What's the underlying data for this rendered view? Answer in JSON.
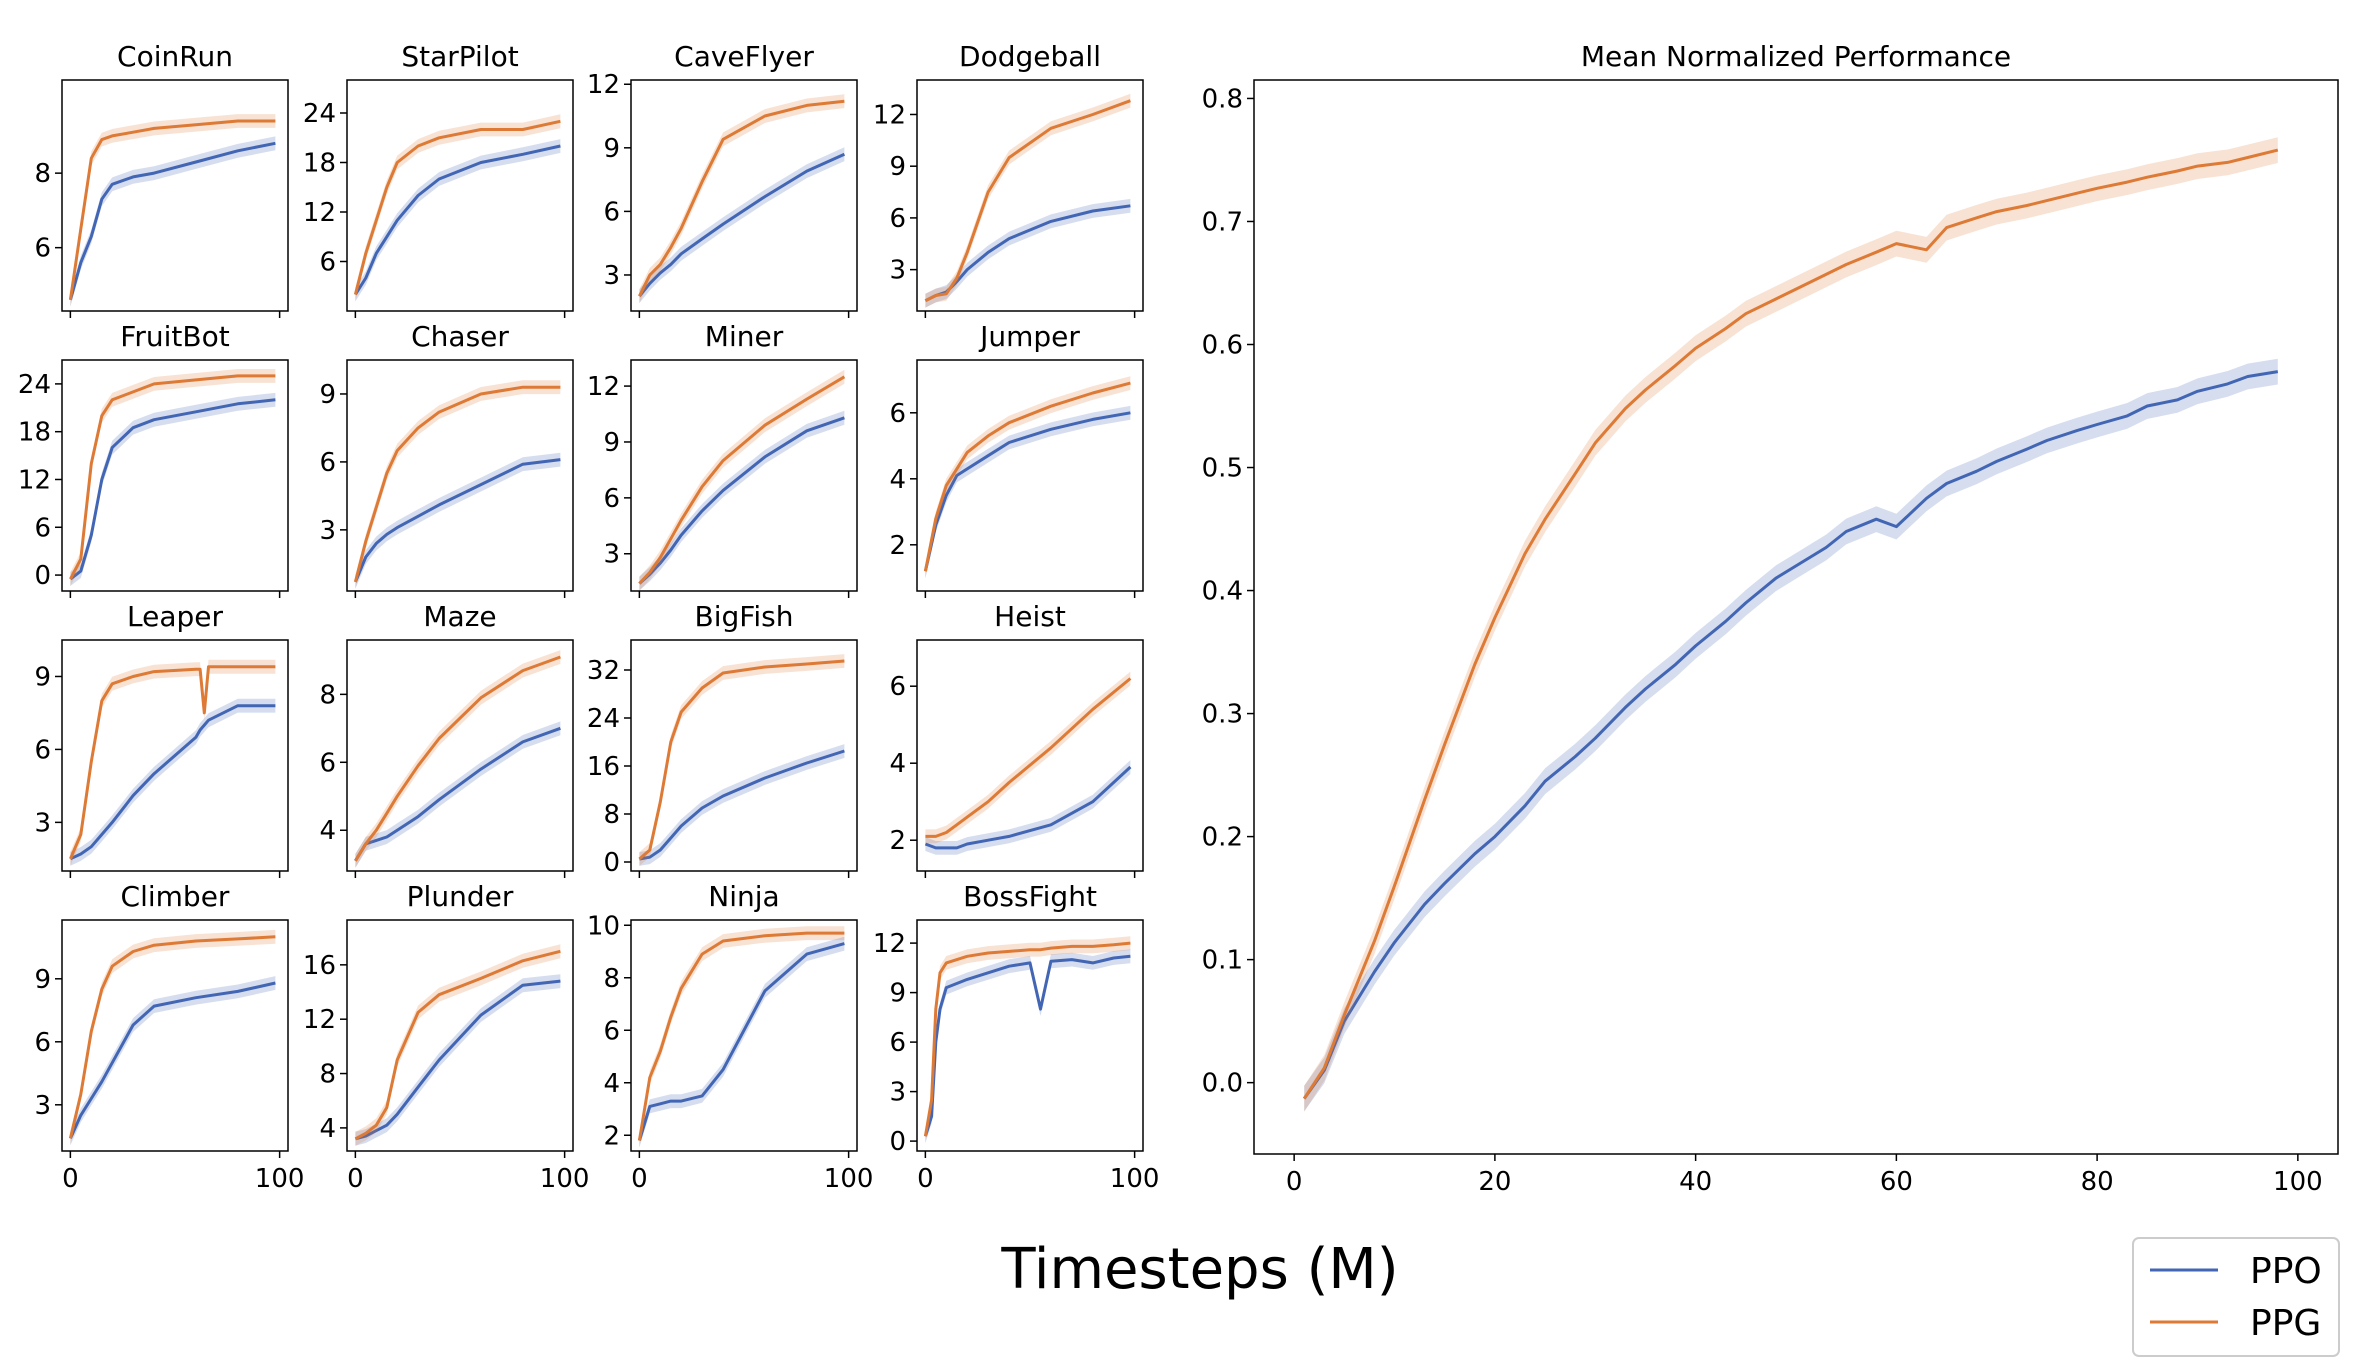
{
  "xlabel": "Timesteps (M)",
  "legend": {
    "placement": "bottom-right",
    "entries": [
      {
        "name": "PPO",
        "color": "#4266b4"
      },
      {
        "name": "PPG",
        "color": "#dd7a36"
      }
    ]
  },
  "chart_data": [
    {
      "type": "line",
      "title": "CoinRun",
      "x": [
        0,
        5,
        10,
        15,
        20,
        30,
        40,
        60,
        80,
        98
      ],
      "yticks": [
        6,
        8
      ],
      "ylim": [
        4.3,
        10.5
      ],
      "xlim": [
        -4,
        104
      ],
      "xticks": [
        0,
        100
      ],
      "series": [
        {
          "name": "PPO",
          "y": [
            4.6,
            5.6,
            6.3,
            7.3,
            7.7,
            7.9,
            8.0,
            8.3,
            8.6,
            8.8
          ]
        },
        {
          "name": "PPG",
          "y": [
            4.6,
            6.5,
            8.4,
            8.9,
            9.0,
            9.1,
            9.2,
            9.3,
            9.4,
            9.4
          ]
        }
      ]
    },
    {
      "type": "line",
      "title": "StarPilot",
      "x": [
        0,
        5,
        10,
        15,
        20,
        30,
        40,
        60,
        80,
        98
      ],
      "yticks": [
        6,
        12,
        18,
        24
      ],
      "ylim": [
        0,
        28
      ],
      "xlim": [
        -4,
        104
      ],
      "xticks": [
        0,
        100
      ],
      "series": [
        {
          "name": "PPO",
          "y": [
            2,
            4,
            7,
            9,
            11,
            14,
            16,
            18,
            19,
            20
          ]
        },
        {
          "name": "PPG",
          "y": [
            2,
            7,
            11,
            15,
            18,
            20,
            21,
            22,
            22,
            23
          ]
        }
      ]
    },
    {
      "type": "line",
      "title": "CaveFlyer",
      "x": [
        0,
        5,
        10,
        15,
        20,
        30,
        40,
        60,
        80,
        98
      ],
      "yticks": [
        3,
        6,
        9,
        12
      ],
      "ylim": [
        1.3,
        12.2
      ],
      "xlim": [
        -4,
        104
      ],
      "xticks": [
        0,
        100
      ],
      "series": [
        {
          "name": "PPO",
          "y": [
            2,
            2.6,
            3.1,
            3.5,
            4,
            4.7,
            5.4,
            6.7,
            7.9,
            8.7
          ]
        },
        {
          "name": "PPG",
          "y": [
            2,
            3,
            3.5,
            4.3,
            5.2,
            7.4,
            9.4,
            10.5,
            11.0,
            11.2
          ]
        }
      ]
    },
    {
      "type": "line",
      "title": "Dodgeball",
      "x": [
        0,
        5,
        10,
        15,
        20,
        30,
        40,
        60,
        80,
        98
      ],
      "yticks": [
        3,
        6,
        9,
        12
      ],
      "ylim": [
        0.6,
        14
      ],
      "xlim": [
        -4,
        104
      ],
      "xticks": [
        0,
        100
      ],
      "series": [
        {
          "name": "PPO",
          "y": [
            1.2,
            1.5,
            1.7,
            2.3,
            3.0,
            4.0,
            4.8,
            5.8,
            6.4,
            6.7
          ]
        },
        {
          "name": "PPG",
          "y": [
            1.2,
            1.5,
            1.6,
            2.5,
            4,
            7.5,
            9.5,
            11.2,
            12.0,
            12.8
          ]
        }
      ]
    },
    {
      "type": "line",
      "title": "FruitBot",
      "x": [
        0,
        5,
        10,
        15,
        20,
        30,
        40,
        60,
        80,
        98
      ],
      "yticks": [
        0,
        6,
        12,
        18,
        24
      ],
      "ylim": [
        -2,
        27
      ],
      "xlim": [
        -4,
        104
      ],
      "xticks": [
        0,
        100
      ],
      "series": [
        {
          "name": "PPO",
          "y": [
            -0.5,
            0.5,
            5,
            12,
            16,
            18.5,
            19.5,
            20.5,
            21.5,
            22
          ]
        },
        {
          "name": "PPG",
          "y": [
            -0.5,
            2,
            14,
            20,
            22,
            23,
            24,
            24.5,
            25,
            25
          ]
        }
      ]
    },
    {
      "type": "line",
      "title": "Chaser",
      "x": [
        0,
        5,
        10,
        15,
        20,
        30,
        40,
        60,
        80,
        98
      ],
      "yticks": [
        3,
        6,
        9
      ],
      "ylim": [
        0.3,
        10.5
      ],
      "xlim": [
        -4,
        104
      ],
      "xticks": [
        0,
        100
      ],
      "series": [
        {
          "name": "PPO",
          "y": [
            0.7,
            1.8,
            2.4,
            2.8,
            3.1,
            3.6,
            4.1,
            5,
            5.9,
            6.1
          ]
        },
        {
          "name": "PPG",
          "y": [
            0.7,
            2.5,
            4,
            5.5,
            6.5,
            7.5,
            8.2,
            9,
            9.3,
            9.3
          ]
        }
      ]
    },
    {
      "type": "line",
      "title": "Miner",
      "x": [
        0,
        5,
        10,
        15,
        20,
        30,
        40,
        60,
        80,
        98
      ],
      "yticks": [
        3,
        6,
        9,
        12
      ],
      "ylim": [
        1,
        13.4
      ],
      "xlim": [
        -4,
        104
      ],
      "xticks": [
        0,
        100
      ],
      "series": [
        {
          "name": "PPO",
          "y": [
            1.4,
            1.9,
            2.5,
            3.2,
            4,
            5.3,
            6.4,
            8.2,
            9.6,
            10.3
          ]
        },
        {
          "name": "PPG",
          "y": [
            1.4,
            2,
            2.8,
            3.8,
            4.8,
            6.6,
            8,
            9.9,
            11.3,
            12.5
          ]
        }
      ]
    },
    {
      "type": "line",
      "title": "Jumper",
      "x": [
        0,
        5,
        10,
        15,
        20,
        30,
        40,
        60,
        80,
        98
      ],
      "yticks": [
        2,
        4,
        6
      ],
      "ylim": [
        0.6,
        7.6
      ],
      "xlim": [
        -4,
        104
      ],
      "xticks": [
        0,
        100
      ],
      "series": [
        {
          "name": "PPO",
          "y": [
            1.2,
            2.6,
            3.5,
            4.1,
            4.3,
            4.7,
            5.1,
            5.5,
            5.8,
            6.0
          ]
        },
        {
          "name": "PPG",
          "y": [
            1.2,
            2.8,
            3.8,
            4.3,
            4.8,
            5.3,
            5.7,
            6.2,
            6.6,
            6.9
          ]
        }
      ]
    },
    {
      "type": "line",
      "title": "Leaper",
      "x": [
        0,
        5,
        10,
        15,
        20,
        30,
        40,
        60,
        62,
        64,
        66,
        80,
        98
      ],
      "yticks": [
        3,
        6,
        9
      ],
      "ylim": [
        1,
        10.5
      ],
      "xlim": [
        -4,
        104
      ],
      "xticks": [
        0,
        100
      ],
      "series": [
        {
          "name": "PPO",
          "y": [
            1.5,
            1.7,
            2.0,
            2.5,
            3.0,
            4.1,
            5.0,
            6.5,
            6.8,
            7.0,
            7.2,
            7.8,
            7.8
          ]
        },
        {
          "name": "PPG",
          "y": [
            1.5,
            2.5,
            5.5,
            8.0,
            8.7,
            9.0,
            9.2,
            9.3,
            9.3,
            7.5,
            9.4,
            9.4,
            9.4
          ]
        }
      ]
    },
    {
      "type": "line",
      "title": "Maze",
      "x": [
        0,
        5,
        10,
        15,
        20,
        30,
        40,
        60,
        80,
        98
      ],
      "yticks": [
        4,
        6,
        8
      ],
      "ylim": [
        2.8,
        9.6
      ],
      "xlim": [
        -4,
        104
      ],
      "xticks": [
        0,
        100
      ],
      "series": [
        {
          "name": "PPO",
          "y": [
            3.1,
            3.6,
            3.7,
            3.8,
            4.0,
            4.4,
            4.9,
            5.8,
            6.6,
            7.0
          ]
        },
        {
          "name": "PPG",
          "y": [
            3.1,
            3.6,
            4.0,
            4.5,
            5.0,
            5.9,
            6.7,
            7.9,
            8.7,
            9.1
          ]
        }
      ]
    },
    {
      "type": "line",
      "title": "BigFish",
      "x": [
        0,
        5,
        10,
        15,
        20,
        30,
        40,
        60,
        80,
        98
      ],
      "yticks": [
        0,
        8,
        16,
        24,
        32
      ],
      "ylim": [
        -1.5,
        37
      ],
      "xlim": [
        -4,
        104
      ],
      "xticks": [
        0,
        100
      ],
      "series": [
        {
          "name": "PPO",
          "y": [
            0.5,
            0.8,
            2,
            4,
            6,
            9,
            11,
            14,
            16.5,
            18.5
          ]
        },
        {
          "name": "PPG",
          "y": [
            0.5,
            2,
            10,
            20,
            25,
            29,
            31.5,
            32.5,
            33,
            33.5
          ]
        }
      ]
    },
    {
      "type": "line",
      "title": "Heist",
      "x": [
        0,
        5,
        10,
        15,
        20,
        30,
        40,
        60,
        80,
        98
      ],
      "yticks": [
        2,
        4,
        6
      ],
      "ylim": [
        1.2,
        7.2
      ],
      "xlim": [
        -4,
        104
      ],
      "xticks": [
        0,
        100
      ],
      "series": [
        {
          "name": "PPO",
          "y": [
            1.9,
            1.8,
            1.8,
            1.8,
            1.9,
            2.0,
            2.1,
            2.4,
            3.0,
            3.9
          ]
        },
        {
          "name": "PPG",
          "y": [
            2.1,
            2.1,
            2.2,
            2.4,
            2.6,
            3.0,
            3.5,
            4.4,
            5.4,
            6.2
          ]
        }
      ]
    },
    {
      "type": "line",
      "title": "Climber",
      "x": [
        0,
        5,
        10,
        15,
        20,
        30,
        40,
        60,
        80,
        98
      ],
      "yticks": [
        3,
        6,
        9
      ],
      "ylim": [
        0.8,
        11.8
      ],
      "xlim": [
        -4,
        104
      ],
      "xticks": [
        0,
        100
      ],
      "series": [
        {
          "name": "PPO",
          "y": [
            1.4,
            2.5,
            3.3,
            4.1,
            5.0,
            6.8,
            7.7,
            8.1,
            8.4,
            8.8
          ]
        },
        {
          "name": "PPG",
          "y": [
            1.4,
            3.5,
            6.5,
            8.5,
            9.6,
            10.3,
            10.6,
            10.8,
            10.9,
            11.0
          ]
        }
      ]
    },
    {
      "type": "line",
      "title": "Plunder",
      "x": [
        0,
        5,
        10,
        15,
        20,
        30,
        40,
        60,
        80,
        98
      ],
      "yticks": [
        4,
        8,
        12,
        16
      ],
      "ylim": [
        2.3,
        19.3
      ],
      "xlim": [
        -4,
        104
      ],
      "xticks": [
        0,
        100
      ],
      "series": [
        {
          "name": "PPO",
          "y": [
            3.2,
            3.4,
            3.8,
            4.2,
            5.0,
            7.0,
            9.0,
            12.3,
            14.5,
            14.8
          ]
        },
        {
          "name": "PPG",
          "y": [
            3.2,
            3.6,
            4.2,
            5.5,
            9.0,
            12.5,
            13.8,
            15.0,
            16.3,
            17.0
          ]
        }
      ]
    },
    {
      "type": "line",
      "title": "Ninja",
      "x": [
        0,
        5,
        10,
        15,
        20,
        30,
        40,
        60,
        80,
        98
      ],
      "yticks": [
        2,
        4,
        6,
        8,
        10
      ],
      "ylim": [
        1.4,
        10.2
      ],
      "xlim": [
        -4,
        104
      ],
      "xticks": [
        0,
        100
      ],
      "series": [
        {
          "name": "PPO",
          "y": [
            1.8,
            3.1,
            3.2,
            3.3,
            3.3,
            3.5,
            4.5,
            7.5,
            8.9,
            9.3
          ]
        },
        {
          "name": "PPG",
          "y": [
            1.8,
            4.2,
            5.2,
            6.5,
            7.6,
            8.9,
            9.4,
            9.6,
            9.7,
            9.7
          ]
        }
      ]
    },
    {
      "type": "line",
      "title": "BossFight",
      "x": [
        0,
        3,
        5,
        7,
        10,
        20,
        30,
        40,
        50,
        55,
        60,
        70,
        80,
        90,
        98
      ],
      "yticks": [
        0,
        3,
        6,
        9,
        12
      ],
      "ylim": [
        -0.6,
        13.4
      ],
      "xlim": [
        -4,
        104
      ],
      "xticks": [
        0,
        100
      ],
      "series": [
        {
          "name": "PPO",
          "y": [
            0.3,
            1.5,
            6,
            8,
            9.3,
            9.8,
            10.2,
            10.6,
            10.8,
            8.0,
            10.9,
            11.0,
            10.8,
            11.1,
            11.2
          ]
        },
        {
          "name": "PPG",
          "y": [
            0.3,
            2.5,
            8,
            10.2,
            10.8,
            11.2,
            11.4,
            11.5,
            11.6,
            11.6,
            11.7,
            11.8,
            11.8,
            11.9,
            12.0
          ]
        }
      ]
    },
    {
      "type": "line",
      "title": "Mean Normalized Performance",
      "large": true,
      "x": [
        1,
        3,
        5,
        8,
        10,
        13,
        15,
        18,
        20,
        23,
        25,
        28,
        30,
        33,
        35,
        38,
        40,
        43,
        45,
        48,
        50,
        53,
        55,
        58,
        60,
        63,
        65,
        68,
        70,
        73,
        75,
        78,
        80,
        83,
        85,
        88,
        90,
        93,
        95,
        98
      ],
      "yticks": [
        0.0,
        0.1,
        0.2,
        0.3,
        0.4,
        0.5,
        0.6,
        0.7,
        0.8
      ],
      "ylim": [
        -0.058,
        0.815
      ],
      "xlim": [
        -4,
        104
      ],
      "xticks": [
        0,
        20,
        40,
        60,
        80,
        100
      ],
      "series": [
        {
          "name": "PPO",
          "y": [
            -0.013,
            0.01,
            0.05,
            0.09,
            0.114,
            0.145,
            0.162,
            0.186,
            0.2,
            0.225,
            0.245,
            0.265,
            0.28,
            0.305,
            0.32,
            0.34,
            0.355,
            0.375,
            0.39,
            0.41,
            0.42,
            0.435,
            0.448,
            0.458,
            0.452,
            0.475,
            0.487,
            0.497,
            0.505,
            0.515,
            0.522,
            0.53,
            0.535,
            0.542,
            0.55,
            0.555,
            0.562,
            0.568,
            0.574,
            0.578
          ]
        },
        {
          "name": "PPG",
          "y": [
            -0.013,
            0.012,
            0.055,
            0.115,
            0.16,
            0.23,
            0.275,
            0.34,
            0.378,
            0.43,
            0.458,
            0.495,
            0.52,
            0.548,
            0.563,
            0.583,
            0.597,
            0.613,
            0.625,
            0.637,
            0.645,
            0.657,
            0.665,
            0.675,
            0.682,
            0.677,
            0.695,
            0.703,
            0.708,
            0.713,
            0.717,
            0.723,
            0.727,
            0.732,
            0.736,
            0.741,
            0.745,
            0.748,
            0.752,
            0.758
          ]
        }
      ]
    }
  ]
}
